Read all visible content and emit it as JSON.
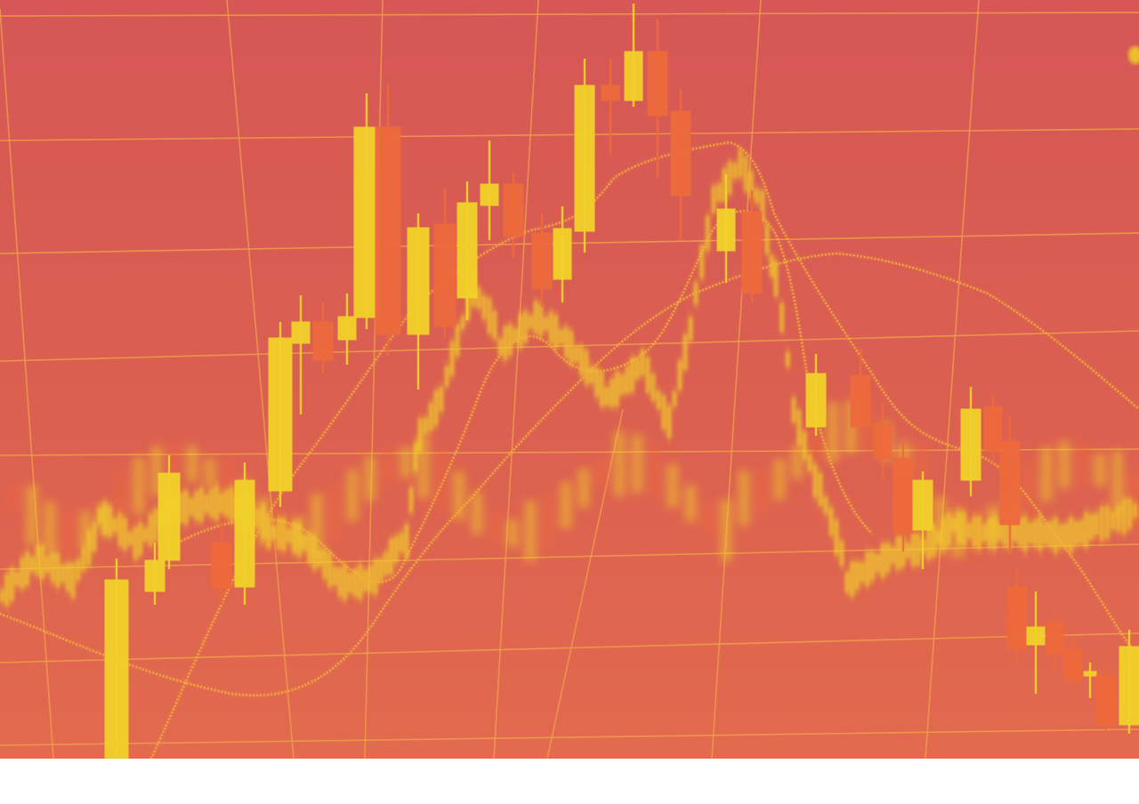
{
  "image": {
    "subject": "stock-market-candlestick-photo",
    "palette": {
      "background_top": "#d85a55",
      "background_bottom": "#e06a4e",
      "grid": "#f0a24a",
      "candle_up": "#f2d12a",
      "candle_down": "#ee6a3c",
      "moving_average": "#f6b43a",
      "page_bottom": "#ffffff"
    }
  }
}
